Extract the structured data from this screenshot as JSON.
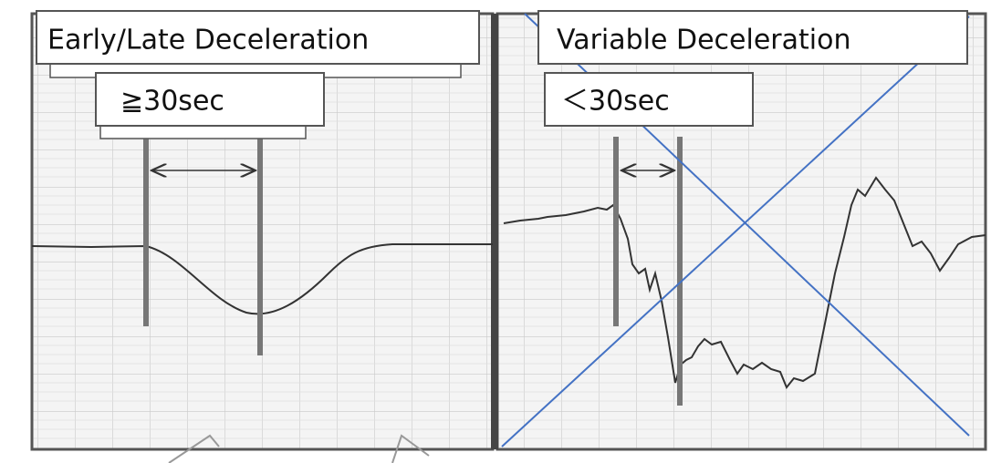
{
  "panels": [
    {
      "title": "Early/Late Deceleration",
      "duration": "≧30sec"
    },
    {
      "title": "Variable Deceleration",
      "duration": "＜30sec"
    }
  ]
}
